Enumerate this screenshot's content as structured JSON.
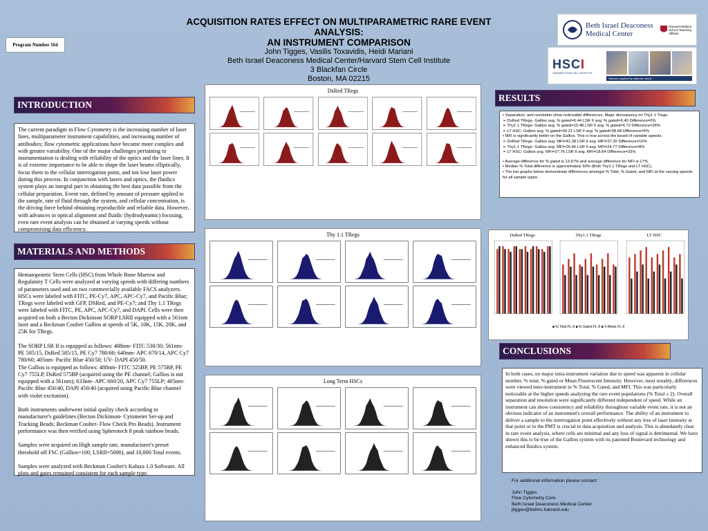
{
  "header": {
    "title_line1": "ACQUISITION RATES EFFECT ON MULTIPARAMETRIC RARE EVENT ANALYSIS:",
    "title_line2": "AN INSTRUMENT COMPARISON",
    "authors": "John Tigges, Vasilis Toxavidis, Heidi Mariani",
    "institute": "Beth Israel Deaconess Medical Center/Harvard Stem Cell Institute",
    "address1": "3 Blackfan Circle",
    "address2": "Boston, MA 02215",
    "program_number": "Program Number 164"
  },
  "logos": {
    "bidmc_name1": "Beth Israel Deaconess",
    "bidmc_name2": "Medical Center",
    "harvard_text": "Harvard Medical School Teaching Affiliate",
    "hsci_text": "HARVARD STEM CELL INSTITUTE",
    "hsci_tagline": "Science inspired by patients' needs"
  },
  "sections": {
    "introduction": "INTRODUCTION",
    "methods": "MATERIALS AND METHODS",
    "results": "RESULTS",
    "conclusions": "CONCLUSIONS"
  },
  "introduction_text": "The current paradigm in Flow Cytometry is the increasing number of laser lines, multiparameter instrument capabilities, and increasing number of antibodies; flow cytometric applications have become more complex and with greater variability. One of the major challenges pertaining to instrumentation is dealing with reliability of the optics and the laser lines. It is of extreme importance to be able to shape the laser beams elliptically, focus them to the cellular interrogation point, and not lose laser power during this process. In conjunction with lasers and optics, the fluidics system plays an integral part in obtaining the best data possible from the cellular preparation. Event rate, defined by amount of pressure applied to the sample, rate of fluid through the system, and cellular concentration, is the driving force behind obtaining reproducible and reliable data. However, with advances in optical alignment and fluidic (hydrodynamic) focusing, even rare event analysis can be obtained at varying speeds without compromising data efficiency.",
  "methods_paragraphs": [
    "Hematopoietic Stem Cells (HSC) from Whole Bone Marrow and Regulatory T Cells were analyzed at varying speeds with differing numbers of parameters used and on two commercially available FACS analyzers. HSCs were labeled with FITC, PE-Cy7, APC, APC-Cy7, and Pacific Blue; TRegs were labeled with GFP, DSRed, and PE-Cy7; and Thy 1.1 TRegs were labeled with FITC, PE, APC, APC-Cy7, and DAPI. Cells were then acquired on both a Becton Dickinson SORP LSRII equipped with a 561nm laser and a Beckman Coulter Gallios at speeds of 5K, 10K, 15K, 20K, and 25K for TRegs.",
    "The SORP LSR II is equipped as follows: 488nm- FITC 530/30; 561nm- PE 585/15, DsRed 585/15, PE Cy7 780/60; 640nm- APC 670/14, APC Cy7 780/60; 405nm- Pacific Blue 450/50; UV- DAPI 450/50.",
    "The Gallios is equipped as follows: 488nm- FITC 525BP, PE 575BP, PE Cy7 755LP, DsRed 575BP (acquired using the PE channel; Gallios is not equipped with a 561nm); 633nm- APC 660/20, APC Cy7 755LP; 405nm- Pacific Blue 450/40, DAPI 450/40 (acquired using Pacific Blue channel with violet excitation).",
    "Both instruments underwent initial quality check according to manufacturer's guidelines (Becton Dickinson- Cytometer Set-up and Tracking Beads; Beckman Coulter- Flow Check Pro Beads). Instrument performance was then verified using Spherotech 8 peak rainbow beads.",
    "Samples were acquired on High sample rate, manufacturer's preset threshold off FSC (Gallios=100; LSRII=5000), and 10,000 Total events.",
    "Samples were analyzed with Beckman Coulter's Kaluza 1.0 Software. All plots and gates remained consistent for each sample type."
  ],
  "panels": {
    "dsred_title": "DsRed TRegs",
    "thy_title": "Thy 1.1 TRegs",
    "hsc_title": "Long Term HSCs"
  },
  "results": {
    "lines": [
      "• Separation, and resolution show noticeable differences. Major discrepancy on Thy1.1 Tregs.",
      "➢ DsRed TRegs-  Gallios avg. % gated=6.44   LSR II avg. % gated=6.45   Difference=0%",
      "➢ Thy1.1 TRegs-  Gallios avg. % gated=10.48   LSR II avg. % gated=6.72   Difference=36%",
      "➢ LT HSC-  Gallios avg. % gated=30.21   LSR II avg. % gated=28.68   Difference=5%",
      "• MFI is significantly better on the Gallios. This is true across the board of variable speeds.",
      "➢ DsRed TRegs-  Gallios avg. MFI=41.38   LSR II avg. MFI=37.30   Difference=10%",
      "➢ Thy1.1 TRegs-  Gallios avg. MFI=26.96   LSR II avg. MFI=24.77   Difference=8%",
      "➢ LT HSC-  Gallios avg. MFI=27.76   LSR II avg. MFI=18.64   Difference=33%"
    ],
    "summary": [
      "• Average difference for % gated is 13.67% and average difference for MFI is 17%.",
      "• Median % Total difference is approximately 50% (Both Thy1.1 TRegs and LT HSC).",
      "• The bar graphs below demonstrate differences amongst % Total, % Gated, and MFI at the varying speeds for all sample types."
    ]
  },
  "bar_charts": {
    "titles": [
      "DsRed TRegs",
      "Thy1.1 TRegs",
      "LT HSC"
    ],
    "legend": "■ % Total FL-9  ■ % Gated FL-9  ■ X-Mean FL-9"
  },
  "conclusions_text": "In both cases, no major intra-instrument variation due to speed was apparent in cellular number, % total, % gated or Mean Fluorescent Intensity. However, most notably, differences were viewed inter-instrument in % Total, % Gated, and MFI. This was particularly noticeable at the higher speeds analyzing the rare event populations (% Total ≤ 2). Overall separation and resolution were significantly different independent of speed. While an instrument can show consistency and reliability throughout variable event rate, it is not an obvious indicator of an instrument's overall performance. The ability of an instrument to deliver a sample to the interrogation point effectively without any loss of laser intensity at that point or to the PMT is crucial to data acquisition and analysis. This is abundantly clear in rare event analysis, where cells are minimal and any loss of signal is detrimental. We have shown this to be true of the Gallios system with its patented Boulevard technology and enhanced fluidics system.",
  "contact": {
    "line1": "For additional information please contact:",
    "name": "John Tigges",
    "dept": "Flow Cytometry Core",
    "org": "Beth Israel Deaconess Medical Center",
    "email": "jtigges@bidmc.harvard.edu"
  },
  "colors": {
    "dsred_hist": "#8b1a1a",
    "thy_hist": "#1a1a6e",
    "hsc_hist": "#222222",
    "bar_red": "#c0392b",
    "bar_dark": "#222222"
  }
}
